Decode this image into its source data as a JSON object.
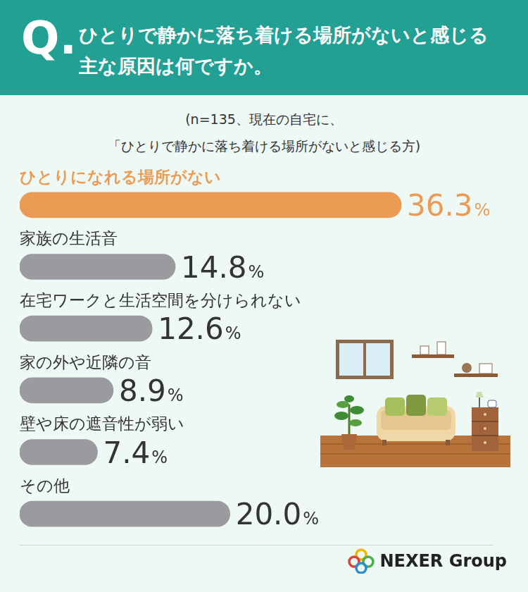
{
  "header_mark": "Q.",
  "logo": "NEXER Group",
  "chart_data": {
    "type": "bar",
    "title": "ひとりで静かに落ち着ける場所がないと感じる\n主な原因は何ですか。",
    "subtitle": "(n=135、現在の自宅に、\n「ひとりで静かに落ち着ける場所がないと感じる方)",
    "orientation": "horizontal",
    "categories": [
      "ひとりになれる場所がない",
      "家族の生活音",
      "在宅ワークと生活空間を分けられない",
      "家の外や近隣の音",
      "壁や床の遮音性が弱い",
      "その他"
    ],
    "values": [
      36.3,
      14.8,
      12.6,
      8.9,
      7.4,
      20.0
    ],
    "value_labels": [
      "36.3%",
      "14.8%",
      "12.6%",
      "8.9%",
      "7.4%",
      "20.0%"
    ],
    "data_labels": true,
    "colors": [
      "#ec9b55",
      "#9b9b9f",
      "#9b9b9f",
      "#9b9b9f",
      "#9b9b9f",
      "#9b9b9f"
    ],
    "xlim": [
      0,
      45
    ],
    "tick_labels": false,
    "grid": false
  }
}
